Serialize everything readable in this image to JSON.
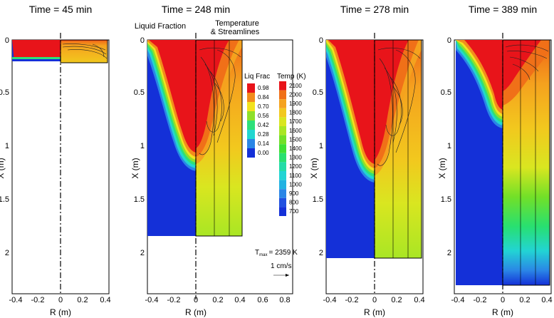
{
  "panels": [
    {
      "title": "Time = 45 min",
      "depth": 0.21,
      "liq_depth": 0.2,
      "xticks": [
        "-0.4",
        "-0.2",
        "0",
        "0.2",
        "0.4"
      ],
      "yticks": [
        "0",
        "0.5",
        "1",
        "1.5",
        "2"
      ],
      "xlabel": "R (m)",
      "ylabel": "X (m)"
    },
    {
      "title": "Time = 248 min",
      "depth": 1.84,
      "liq_depth": 1.25,
      "xticks": [
        "-0.4",
        "-0.2",
        "0",
        "0.2",
        "0.4",
        "0.6",
        "0.8"
      ],
      "yticks": [
        "0",
        "0.5",
        "1",
        "1.5",
        "2"
      ],
      "xlabel": "R (m)",
      "ylabel": "X (m)"
    },
    {
      "title": "Time = 278 min",
      "depth": 2.04,
      "liq_depth": 1.35,
      "xticks": [
        "-0.4",
        "-0.2",
        "0",
        "0.2",
        "0.4"
      ],
      "yticks": [
        "0",
        "0.5",
        "1",
        "1.5",
        "2"
      ],
      "xlabel": "R (m)",
      "ylabel": "X (m)"
    },
    {
      "title": "Time = 389 min",
      "depth": 2.3,
      "liq_depth": 0.82,
      "xticks": [
        "-0.4",
        "-0.2",
        "0",
        "0.2",
        "0.4"
      ],
      "yticks": [
        "0",
        "0.5",
        "1",
        "1.5",
        "2"
      ],
      "xlabel": "R (m)",
      "ylabel": "X (m)"
    }
  ],
  "annotations": {
    "left_label": "Liquid Fraction",
    "right_label_1": "Temperature",
    "right_label_2": "& Streamlines",
    "tmax_prefix": "T",
    "tmax_sub": "max",
    "tmax_value": "= 2359 K",
    "velocity_ref": "1 cm/s"
  },
  "legend_liq": {
    "title": "Liq Frac",
    "levels": [
      "0.98",
      "0.84",
      "0.70",
      "0.56",
      "0.42",
      "0.28",
      "0.14",
      "0.00"
    ],
    "colors": [
      "#e8141a",
      "#f28c1c",
      "#f2e21e",
      "#8fe02a",
      "#2ee07a",
      "#22d6d0",
      "#2a86e6",
      "#1430d8"
    ]
  },
  "legend_temp": {
    "title": "Temp (K)",
    "levels": [
      "2100",
      "2000",
      "1900",
      "1800",
      "1700",
      "1600",
      "1500",
      "1400",
      "1300",
      "1200",
      "1100",
      "1000",
      "900",
      "800",
      "700"
    ],
    "colors": [
      "#e8141a",
      "#f07018",
      "#f5a21e",
      "#f2c81e",
      "#d9e620",
      "#a9e624",
      "#72e028",
      "#3ee034",
      "#28e070",
      "#24dca8",
      "#22d4d4",
      "#22b2e2",
      "#2a86e6",
      "#2050e0",
      "#1430d8"
    ]
  }
}
